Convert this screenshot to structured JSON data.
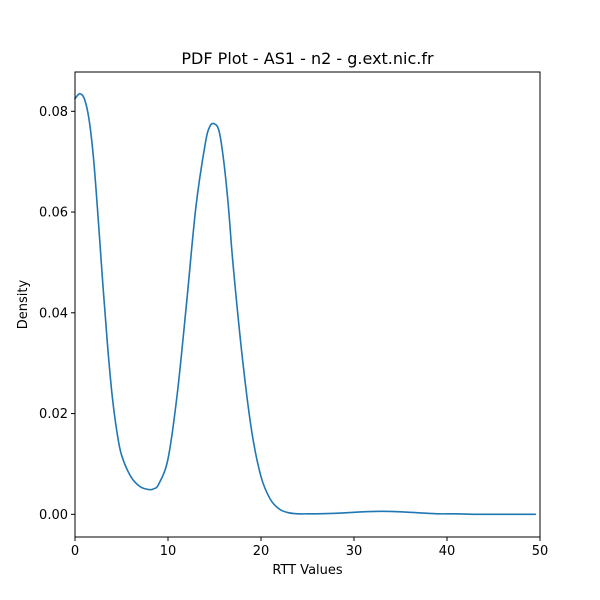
{
  "chart_data": {
    "type": "line",
    "title": "PDF Plot - AS1 - n2 - g.ext.nic.fr",
    "xlabel": "RTT Values",
    "ylabel": "Density",
    "xlim": [
      0,
      50
    ],
    "ylim": [
      -0.0045,
      0.0878
    ],
    "x_ticks": [
      0,
      10,
      20,
      30,
      40,
      50
    ],
    "x_tick_labels": [
      "0",
      "10",
      "20",
      "30",
      "40",
      "50"
    ],
    "y_ticks": [
      0.0,
      0.02,
      0.04,
      0.06,
      0.08
    ],
    "y_tick_labels": [
      "0.00",
      "0.02",
      "0.04",
      "0.06",
      "0.08"
    ],
    "grid": false,
    "line_color": "#1f77b4",
    "series": [
      {
        "x": [
          0,
          0.5,
          1,
          1.5,
          2,
          2.5,
          3,
          3.5,
          4,
          4.5,
          5,
          6,
          7,
          8,
          8.5,
          9,
          10,
          11,
          12,
          13,
          14,
          14.5,
          15,
          15.5,
          16,
          16.5,
          17,
          18,
          19,
          20,
          21,
          22,
          23,
          24,
          25,
          26,
          28,
          30,
          31,
          33,
          35,
          37,
          39,
          41,
          43,
          45,
          47,
          49.5
        ],
        "y": [
          0.0825,
          0.0835,
          0.0825,
          0.0785,
          0.0705,
          0.0585,
          0.0455,
          0.0335,
          0.0235,
          0.0165,
          0.0118,
          0.0075,
          0.0055,
          0.0049,
          0.0051,
          0.006,
          0.011,
          0.024,
          0.042,
          0.061,
          0.0735,
          0.077,
          0.0775,
          0.076,
          0.07,
          0.061,
          0.0495,
          0.031,
          0.0165,
          0.0075,
          0.003,
          0.001,
          0.0003,
          0.0001,
          0.0001,
          0.0001,
          0.0002,
          0.0004,
          0.0005,
          0.0006,
          0.0005,
          0.0003,
          0.0001,
          0.0001,
          0.0,
          0.0,
          0.0,
          0.0
        ]
      }
    ]
  }
}
